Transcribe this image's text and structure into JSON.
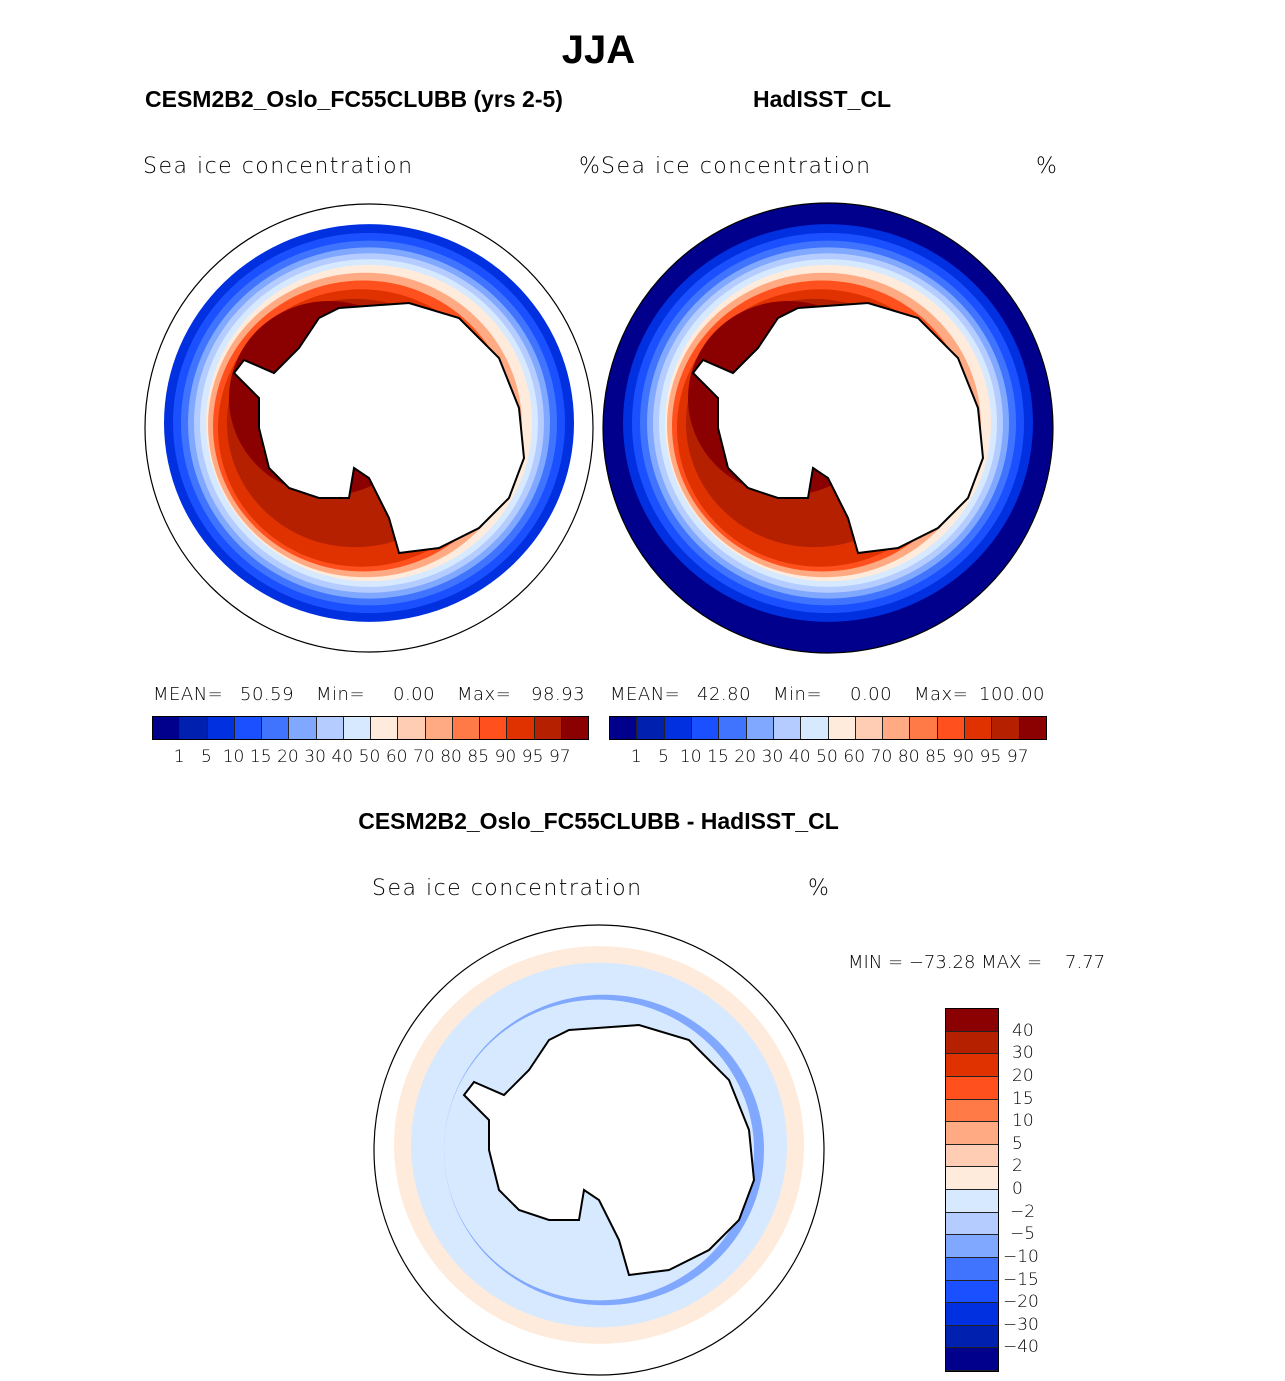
{
  "figure_title": "JJA",
  "panels": [
    {
      "subtitle": "CESM2B2_Oslo_FC55CLUBB (yrs 2-5)",
      "variable": "Sea ice concentration",
      "units": "%",
      "stats": {
        "mean_label": "MEAN=",
        "mean": "50.59",
        "min_label": "Min=",
        "min": "0.00",
        "max_label": "Max=",
        "max": "98.93"
      }
    },
    {
      "subtitle": "HadISST_CL",
      "variable": "Sea ice concentration",
      "units": "%",
      "stats": {
        "mean_label": "MEAN=",
        "mean": "42.80",
        "min_label": "Min=",
        "min": "0.00",
        "max_label": "Max=",
        "max": "100.00"
      }
    },
    {
      "subtitle": "CESM2B2_Oslo_FC55CLUBB - HadISST_CL",
      "variable": "Sea ice concentration",
      "units": "%",
      "stats": {
        "text": "MIN = −73.28 MAX =    7.77"
      }
    }
  ],
  "colorbar_abs": {
    "levels": [
      "1",
      "5",
      "10",
      "15",
      "20",
      "30",
      "40",
      "50",
      "60",
      "70",
      "80",
      "85",
      "90",
      "95",
      "97"
    ]
  },
  "colorbar_diff": {
    "levels": [
      "40",
      "30",
      "20",
      "15",
      "10",
      "5",
      "2",
      "0",
      "−2",
      "−5",
      "−10",
      "−15",
      "−20",
      "−30",
      "−40"
    ]
  },
  "colors": [
    "#00008c",
    "#0020b0",
    "#0030e0",
    "#1a50ff",
    "#4074ff",
    "#80a8ff",
    "#b4ccff",
    "#d6e9ff",
    "#ffebdb",
    "#ffccb4",
    "#ffaa82",
    "#ff7a46",
    "#ff501e",
    "#e03200",
    "#b42000",
    "#8b0000"
  ]
}
